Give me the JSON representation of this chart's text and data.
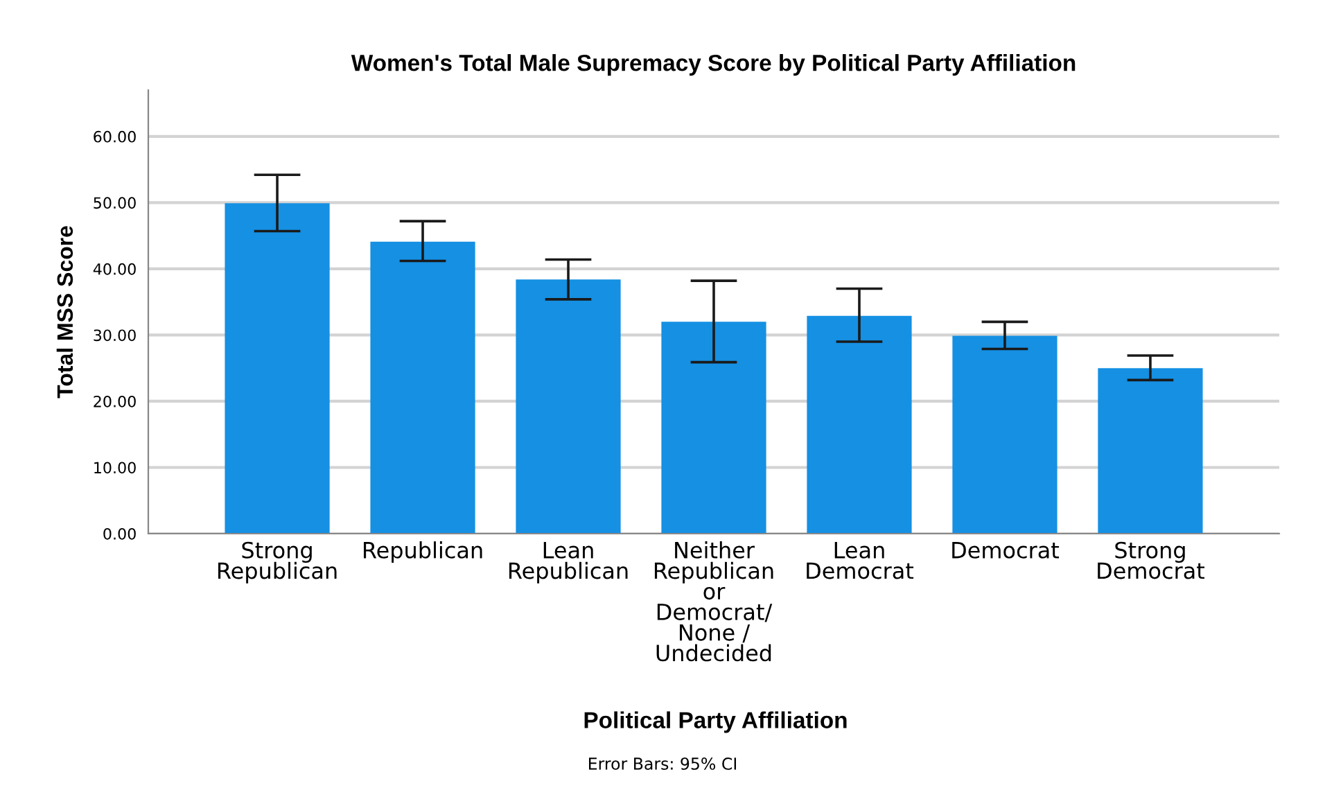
{
  "chart_data": {
    "type": "bar",
    "title": "Women's Total Male Supremacy Score by Political Party Affiliation",
    "xlabel": "Political Party Affiliation",
    "ylabel": "Total MSS Score",
    "categories": [
      "Strong\nRepublican",
      "Republican",
      "Lean\nRepublican",
      "Neither\nRepublican\nor\nDemocrat/\nNone /\nUndecided",
      "Lean\nDemocrat",
      "Democrat",
      "Strong\nDemocrat"
    ],
    "values": [
      49.9,
      44.1,
      38.4,
      32.0,
      32.9,
      29.9,
      25.0
    ],
    "errors": [
      [
        45.7,
        54.2
      ],
      [
        41.2,
        47.2
      ],
      [
        35.4,
        41.4
      ],
      [
        25.9,
        38.2
      ],
      [
        29.0,
        37.0
      ],
      [
        27.9,
        32.0
      ],
      [
        23.2,
        26.9
      ]
    ],
    "color": "#1590e3",
    "ylim": [
      0,
      67
    ],
    "yticks": [
      {
        "value": 0,
        "label": "0.00"
      },
      {
        "value": 10,
        "label": "10.00"
      },
      {
        "value": 20,
        "label": "20.00"
      },
      {
        "value": 30,
        "label": "30.00"
      },
      {
        "value": 40,
        "label": "40.00"
      },
      {
        "value": 50,
        "label": "50.00"
      },
      {
        "value": 60,
        "label": "60.00"
      }
    ],
    "grid": "y",
    "annotations": [
      "Error Bars: 95% CI"
    ]
  }
}
